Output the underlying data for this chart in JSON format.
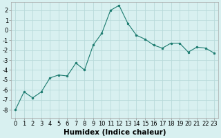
{
  "x": [
    0,
    1,
    2,
    3,
    4,
    5,
    6,
    7,
    8,
    9,
    10,
    11,
    12,
    13,
    14,
    15,
    16,
    17,
    18,
    19,
    20,
    21,
    22,
    23
  ],
  "y": [
    -8,
    -6.2,
    -6.8,
    -6.2,
    -4.8,
    -4.5,
    -4.6,
    -3.3,
    -4.0,
    -1.5,
    -0.3,
    2.0,
    2.5,
    0.7,
    -0.5,
    -0.9,
    -1.5,
    -1.8,
    -1.3,
    -1.3,
    -2.2,
    -1.7,
    -1.8,
    -2.3
  ],
  "line_color": "#1a7a6e",
  "marker": "o",
  "marker_size": 2.0,
  "bg_color": "#d8f0f0",
  "grid_color": "#b8dada",
  "xlabel": "Humidex (Indice chaleur)",
  "xlabel_fontsize": 7.5,
  "tick_fontsize": 6,
  "ylim": [
    -8.8,
    2.8
  ],
  "yticks": [
    -8,
    -7,
    -6,
    -5,
    -4,
    -3,
    -2,
    -1,
    0,
    1,
    2
  ],
  "xlim": [
    -0.5,
    23.5
  ],
  "xticks": [
    0,
    1,
    2,
    3,
    4,
    5,
    6,
    7,
    8,
    9,
    10,
    11,
    12,
    13,
    14,
    15,
    16,
    17,
    18,
    19,
    20,
    21,
    22,
    23
  ]
}
